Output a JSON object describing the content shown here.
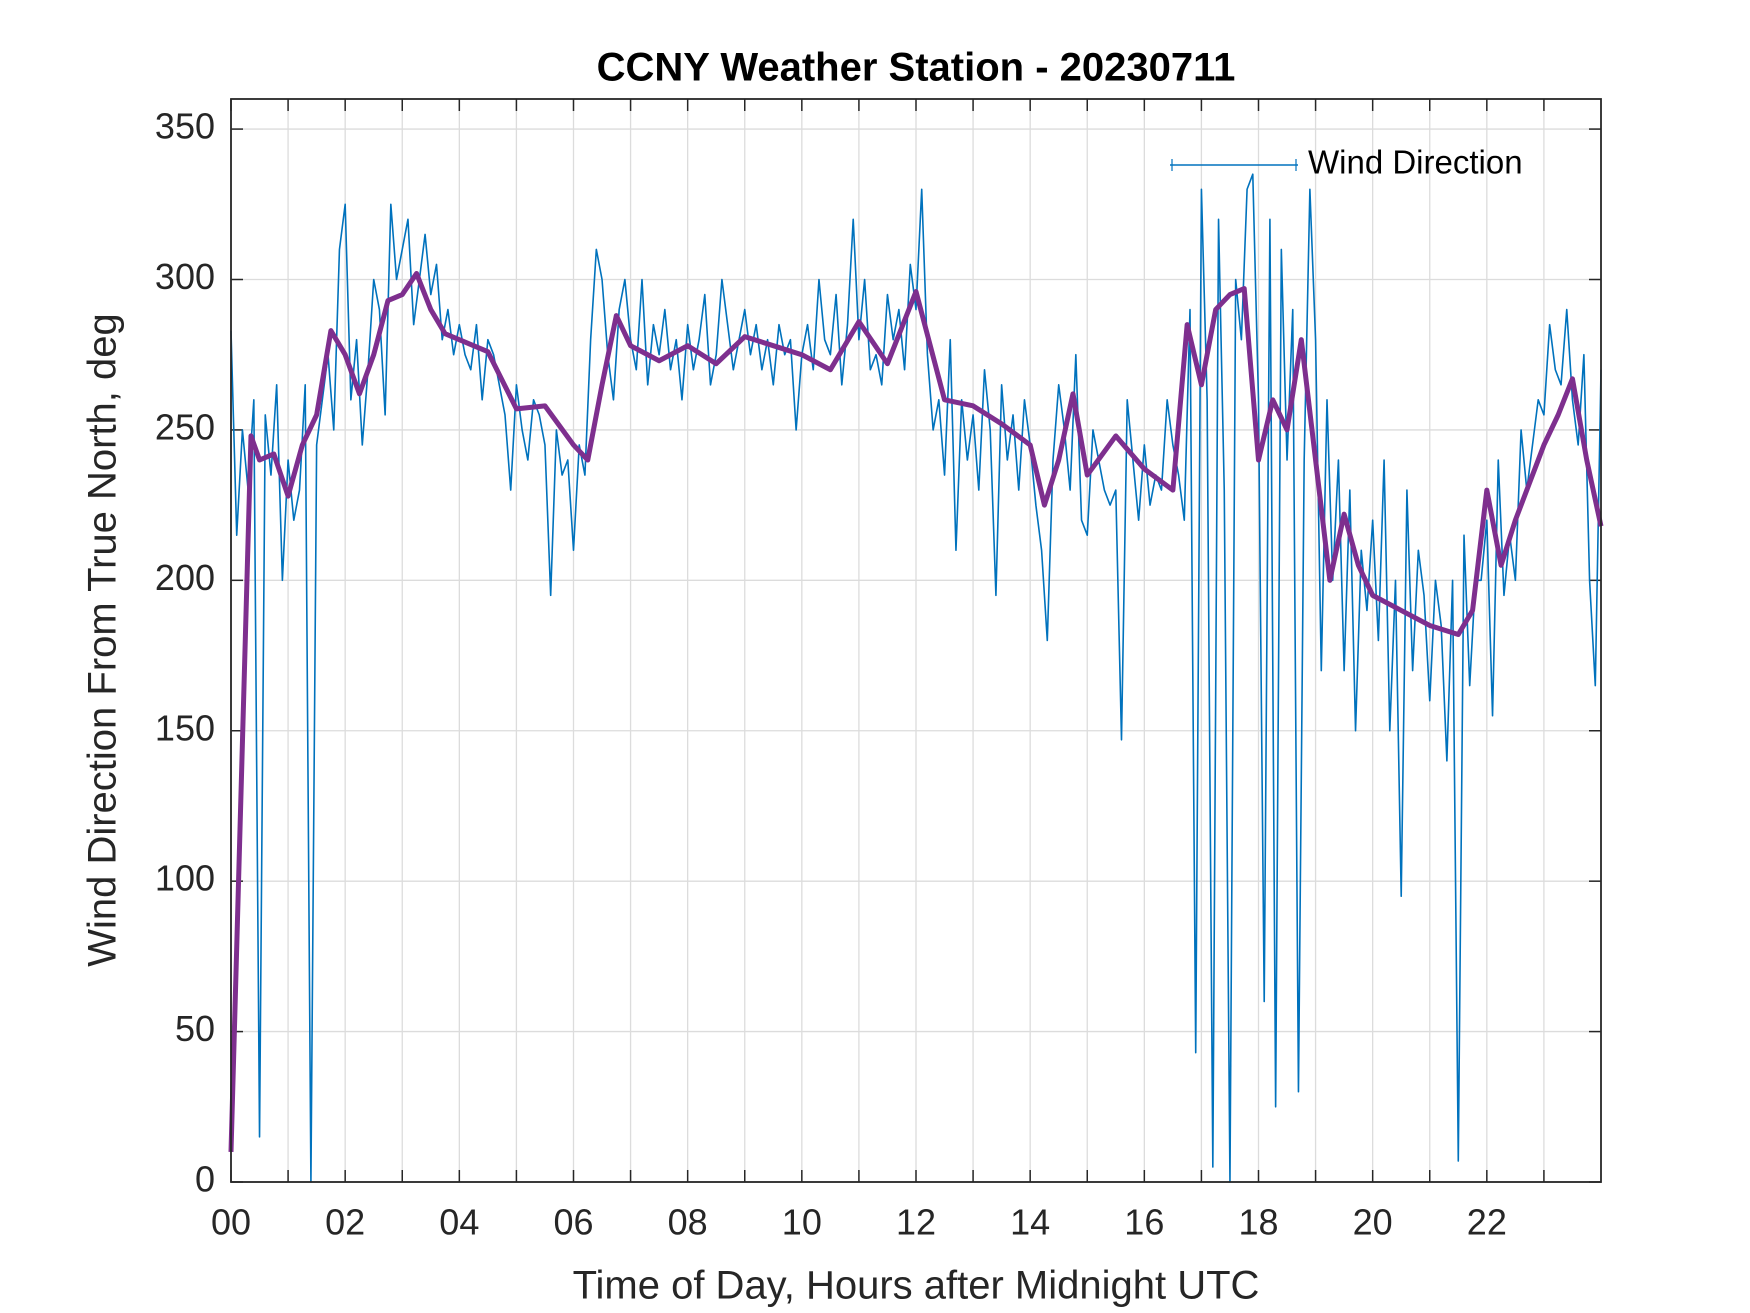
{
  "chart_data": {
    "type": "line",
    "title": "CCNY Weather Station - 20230711",
    "x_label": "Time of Day, Hours after Midnight UTC",
    "y_label": "Wind Direction From True North, deg",
    "xlim": [
      0,
      24
    ],
    "ylim": [
      0,
      360
    ],
    "xticks": [
      {
        "value": 0,
        "label": "00"
      },
      {
        "value": 2,
        "label": "02"
      },
      {
        "value": 4,
        "label": "04"
      },
      {
        "value": 6,
        "label": "06"
      },
      {
        "value": 8,
        "label": "08"
      },
      {
        "value": 10,
        "label": "10"
      },
      {
        "value": 12,
        "label": "12"
      },
      {
        "value": 14,
        "label": "14"
      },
      {
        "value": 16,
        "label": "16"
      },
      {
        "value": 18,
        "label": "18"
      },
      {
        "value": 20,
        "label": "20"
      },
      {
        "value": 22,
        "label": "22"
      }
    ],
    "xminor": [
      1,
      3,
      5,
      7,
      9,
      11,
      13,
      15,
      17,
      19,
      21,
      23
    ],
    "yticks": [
      0,
      50,
      100,
      150,
      200,
      250,
      300,
      350
    ],
    "grid": true,
    "legend": "upper right",
    "series": [
      {
        "name": "Wind Direction",
        "color": "#0072bd",
        "x": [
          0,
          0.1,
          0.2,
          0.3,
          0.4,
          0.5,
          0.6,
          0.7,
          0.8,
          0.9,
          1,
          1.1,
          1.2,
          1.3,
          1.4,
          1.5,
          1.6,
          1.7,
          1.8,
          1.9,
          2,
          2.1,
          2.2,
          2.3,
          2.4,
          2.5,
          2.6,
          2.7,
          2.8,
          2.9,
          3,
          3.1,
          3.2,
          3.3,
          3.4,
          3.5,
          3.6,
          3.7,
          3.8,
          3.9,
          4,
          4.1,
          4.2,
          4.3,
          4.4,
          4.5,
          4.6,
          4.7,
          4.8,
          4.9,
          5,
          5.1,
          5.2,
          5.3,
          5.4,
          5.5,
          5.6,
          5.7,
          5.8,
          5.9,
          6,
          6.1,
          6.2,
          6.3,
          6.4,
          6.5,
          6.6,
          6.7,
          6.8,
          6.9,
          7,
          7.1,
          7.2,
          7.3,
          7.4,
          7.5,
          7.6,
          7.7,
          7.8,
          7.9,
          8,
          8.1,
          8.2,
          8.3,
          8.4,
          8.5,
          8.6,
          8.7,
          8.8,
          8.9,
          9,
          9.1,
          9.2,
          9.3,
          9.4,
          9.5,
          9.6,
          9.7,
          9.8,
          9.9,
          10,
          10.1,
          10.2,
          10.3,
          10.4,
          10.5,
          10.6,
          10.7,
          10.8,
          10.9,
          11,
          11.1,
          11.2,
          11.3,
          11.4,
          11.5,
          11.6,
          11.7,
          11.8,
          11.9,
          12,
          12.1,
          12.2,
          12.3,
          12.4,
          12.5,
          12.6,
          12.7,
          12.8,
          12.9,
          13,
          13.1,
          13.2,
          13.3,
          13.4,
          13.5,
          13.6,
          13.7,
          13.8,
          13.9,
          14,
          14.1,
          14.2,
          14.3,
          14.4,
          14.5,
          14.6,
          14.7,
          14.8,
          14.9,
          15,
          15.1,
          15.2,
          15.3,
          15.4,
          15.5,
          15.6,
          15.7,
          15.8,
          15.9,
          16,
          16.1,
          16.2,
          16.3,
          16.4,
          16.5,
          16.6,
          16.7,
          16.8,
          16.9,
          17,
          17.1,
          17.2,
          17.3,
          17.4,
          17.5,
          17.6,
          17.7,
          17.8,
          17.9,
          18,
          18.1,
          18.2,
          18.3,
          18.4,
          18.5,
          18.6,
          18.7,
          18.8,
          18.9,
          19,
          19.1,
          19.2,
          19.3,
          19.4,
          19.5,
          19.6,
          19.7,
          19.8,
          19.9,
          20,
          20.1,
          20.2,
          20.3,
          20.4,
          20.5,
          20.6,
          20.7,
          20.8,
          20.9,
          21,
          21.1,
          21.2,
          21.3,
          21.4,
          21.5,
          21.6,
          21.7,
          21.8,
          21.9,
          22,
          22.1,
          22.2,
          22.3,
          22.4,
          22.5,
          22.6,
          22.7,
          22.8,
          22.9,
          23,
          23.1,
          23.2,
          23.3,
          23.4,
          23.5,
          23.6,
          23.7,
          23.8,
          23.9,
          24
        ],
        "values": [
          283,
          215,
          250,
          230,
          260,
          15,
          255,
          235,
          265,
          200,
          240,
          220,
          230,
          265,
          0,
          245,
          260,
          275,
          250,
          310,
          325,
          260,
          280,
          245,
          270,
          300,
          290,
          255,
          325,
          300,
          310,
          320,
          285,
          300,
          315,
          295,
          305,
          280,
          290,
          275,
          285,
          275,
          270,
          285,
          260,
          280,
          275,
          265,
          255,
          230,
          265,
          250,
          240,
          260,
          255,
          245,
          195,
          250,
          235,
          240,
          210,
          245,
          235,
          280,
          310,
          300,
          275,
          260,
          290,
          300,
          280,
          270,
          300,
          265,
          285,
          275,
          290,
          270,
          280,
          260,
          285,
          270,
          280,
          295,
          265,
          275,
          300,
          285,
          270,
          280,
          290,
          275,
          285,
          270,
          280,
          265,
          285,
          275,
          280,
          250,
          275,
          285,
          270,
          300,
          280,
          275,
          295,
          265,
          285,
          320,
          280,
          300,
          270,
          275,
          265,
          295,
          280,
          290,
          270,
          305,
          290,
          330,
          275,
          250,
          260,
          235,
          280,
          210,
          260,
          240,
          255,
          230,
          270,
          250,
          195,
          265,
          240,
          255,
          230,
          260,
          245,
          225,
          210,
          180,
          240,
          265,
          250,
          230,
          275,
          220,
          215,
          250,
          240,
          230,
          225,
          230,
          147,
          260,
          240,
          220,
          245,
          225,
          235,
          230,
          260,
          245,
          235,
          220,
          290,
          43,
          330,
          260,
          5,
          320,
          230,
          0,
          300,
          280,
          330,
          335,
          260,
          60,
          320,
          25,
          310,
          240,
          290,
          30,
          240,
          330,
          280,
          170,
          260,
          200,
          240,
          170,
          230,
          150,
          210,
          190,
          220,
          180,
          240,
          150,
          200,
          95,
          230,
          170,
          210,
          195,
          160,
          200,
          185,
          140,
          200,
          7,
          215,
          165,
          200,
          200,
          220,
          155,
          240,
          195,
          215,
          200,
          250,
          230,
          245,
          260,
          255,
          285,
          270,
          265,
          290,
          260,
          245,
          275,
          200,
          165,
          270
        ]
      },
      {
        "color": "#7e2f8e",
        "x": [
          0,
          0.35,
          0.5,
          0.75,
          1,
          1.25,
          1.5,
          1.75,
          2,
          2.25,
          2.5,
          2.75,
          3,
          3.25,
          3.5,
          3.75,
          4,
          4.5,
          5,
          5.5,
          6,
          6.25,
          6.5,
          6.75,
          7,
          7.5,
          8,
          8.5,
          9,
          9.5,
          10,
          10.5,
          11,
          11.5,
          12,
          12.5,
          13,
          13.5,
          14,
          14.25,
          14.5,
          14.75,
          15,
          15.5,
          16,
          16.5,
          16.75,
          17,
          17.25,
          17.5,
          17.75,
          18,
          18.25,
          18.5,
          18.75,
          19,
          19.25,
          19.5,
          19.75,
          20,
          20.5,
          21,
          21.5,
          21.75,
          22,
          22.25,
          22.5,
          23,
          23.25,
          23.5,
          23.75,
          24
        ],
        "values": [
          10,
          248,
          240,
          242,
          228,
          245,
          255,
          283,
          275,
          262,
          275,
          293,
          295,
          302,
          290,
          282,
          280,
          276,
          257,
          258,
          245,
          240,
          265,
          288,
          278,
          273,
          278,
          272,
          281,
          278,
          275,
          270,
          286,
          272,
          296,
          260,
          258,
          252,
          245,
          225,
          240,
          262,
          235,
          248,
          237,
          230,
          285,
          265,
          290,
          295,
          297,
          240,
          260,
          250,
          280,
          240,
          200,
          222,
          205,
          195,
          190,
          185,
          182,
          190,
          230,
          205,
          220,
          245,
          255,
          267,
          240,
          218
        ]
      }
    ]
  }
}
